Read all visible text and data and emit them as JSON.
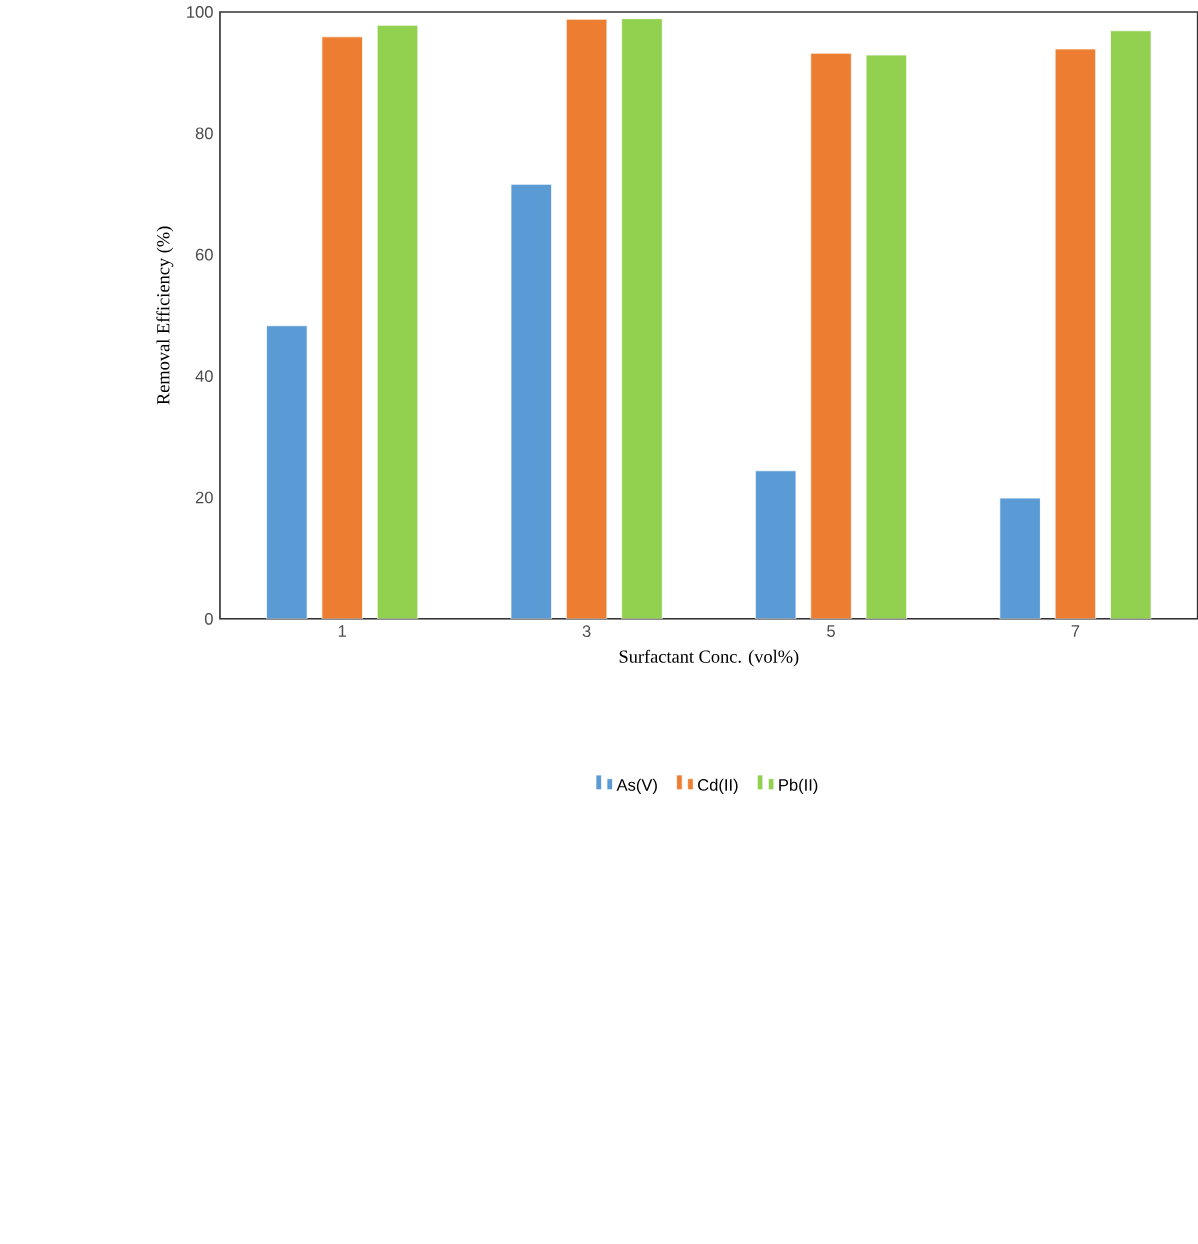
{
  "chart_data": {
    "type": "bar",
    "xlabel": "Surfactant Conc. (vol%)",
    "ylabel": "Removal Efficiency (%)",
    "categories": [
      "1",
      "3",
      "5",
      "7"
    ],
    "series": [
      {
        "name": "As(V)",
        "color": "#5b9bd5",
        "values": [
          48.3,
          71.6,
          24.4,
          19.9
        ]
      },
      {
        "name": "Cd(II)",
        "color": "#ed7d31",
        "values": [
          95.9,
          98.8,
          93.2,
          93.9
        ]
      },
      {
        "name": "Pb(II)",
        "color": "#92d050",
        "values": [
          97.8,
          98.9,
          92.9,
          96.9
        ]
      }
    ],
    "ylim": [
      0,
      100
    ],
    "yticks": [
      0,
      20,
      40,
      60,
      80,
      100
    ],
    "legend": "bottom"
  }
}
